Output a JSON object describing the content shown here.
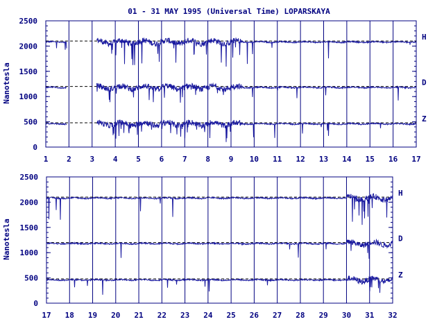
{
  "chart_data": {
    "title": "01 - 31 MAY 1995 (Universal Time) LOPARSKAYA",
    "ylabel": "Nanotesla",
    "colors": {
      "trace": "#1a1aa0",
      "axis": "#000080",
      "baseline": "#000000"
    },
    "panels": [
      {
        "type": "line",
        "x_ticks": [
          "1",
          "2",
          "3",
          "4",
          "5",
          "6",
          "7",
          "8",
          "9",
          "10",
          "11",
          "12",
          "13",
          "14",
          "15",
          "16",
          "17"
        ],
        "xlim": [
          1,
          17
        ],
        "ylim": [
          0,
          2500
        ],
        "y_ticks": [
          "0",
          "500",
          "1000",
          "1500",
          "2000",
          "2500"
        ],
        "series": [
          {
            "name": "H",
            "baseline": 2100
          },
          {
            "name": "D",
            "baseline": 1200
          },
          {
            "name": "Z",
            "baseline": 480
          }
        ]
      },
      {
        "type": "line",
        "x_ticks": [
          "17",
          "18",
          "19",
          "20",
          "21",
          "22",
          "23",
          "24",
          "25",
          "26",
          "27",
          "28",
          "29",
          "30",
          "31",
          "32"
        ],
        "xlim": [
          17,
          32
        ],
        "ylim": [
          0,
          2500
        ],
        "y_ticks": [
          "0",
          "500",
          "1000",
          "1500",
          "2000",
          "2500"
        ],
        "series": [
          {
            "name": "H",
            "baseline": 2100
          },
          {
            "name": "D",
            "baseline": 1200
          },
          {
            "name": "Z",
            "baseline": 480
          }
        ]
      }
    ]
  }
}
